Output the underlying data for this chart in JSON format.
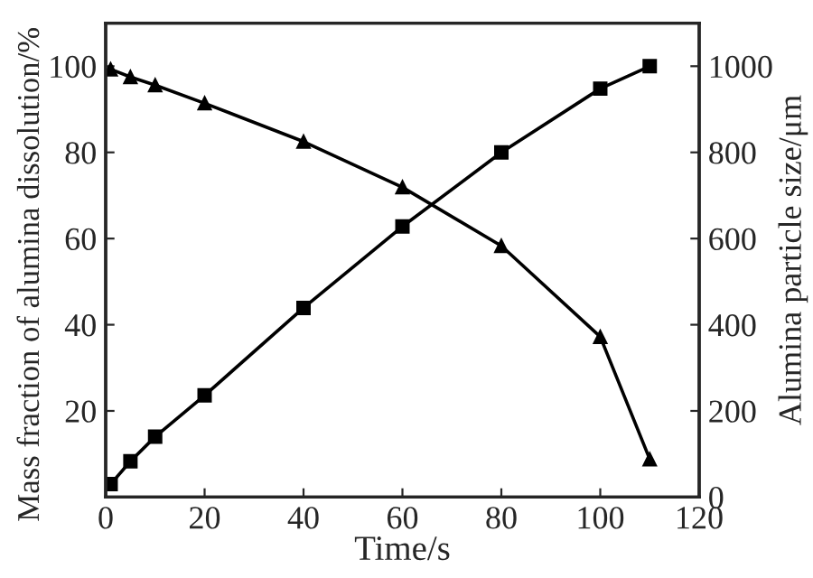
{
  "chart_data": {
    "type": "line",
    "xlabel": "Time/s",
    "ylabel": "Mass fraction of alumina dissolution/%",
    "y2label": "Alumina particle size/μm",
    "xlim": [
      0,
      120
    ],
    "xticks": [
      0,
      20,
      40,
      60,
      80,
      100,
      120
    ],
    "ylim": [
      0,
      110
    ],
    "yticks": [
      20,
      40,
      60,
      80,
      100
    ],
    "y2lim": [
      0,
      1100
    ],
    "y2ticks": [
      0,
      200,
      400,
      600,
      800,
      1000
    ],
    "grid": false,
    "legend": false,
    "series": [
      {
        "color": "#000000",
        "marker": "square",
        "x": [
          1,
          5,
          10,
          20,
          40,
          60,
          80,
          100,
          110
        ],
        "values": [
          3,
          8.3,
          14,
          23.6,
          43.9,
          62.8,
          80,
          94.8,
          100
        ]
      },
      {
        "color": "#000000",
        "marker": "triangle",
        "axis": "y2",
        "x": [
          1,
          5,
          10,
          20,
          40,
          60,
          80,
          100,
          110
        ],
        "values": [
          993,
          975,
          956,
          914,
          825,
          719,
          583,
          372,
          88
        ]
      }
    ]
  }
}
